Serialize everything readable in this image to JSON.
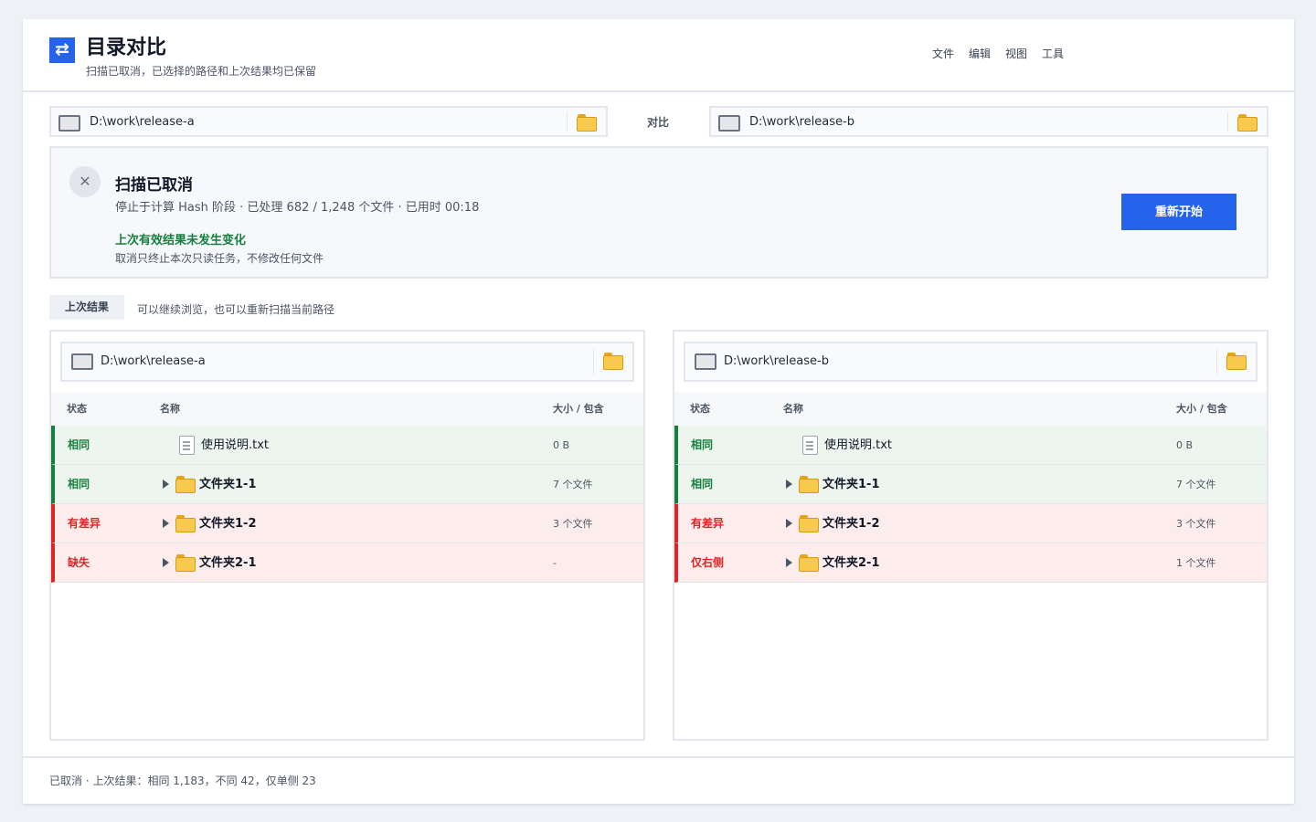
{
  "app": {
    "title": "目录对比",
    "subtitle": "扫描已取消，已选择的路径和上次结果均已保留",
    "logo_icon": "swap-arrows-icon"
  },
  "menu": [
    "文件",
    "编辑",
    "视图",
    "工具"
  ],
  "paths": {
    "left": "D:\\work\\release-a",
    "right": "D:\\work\\release-b",
    "compare_label": "对比"
  },
  "cancel": {
    "icon": "close-icon",
    "title": "扫描已取消",
    "detail": "停止于计算 Hash 阶段 · 已处理 682 / 1,248 个文件 · 已用时 00:18",
    "note_title": "上次有效结果未发生变化",
    "note_text": "取消只终止本次只读任务，不修改任何文件",
    "restart_label": "重新开始"
  },
  "last_results": {
    "tag": "上次结果",
    "hint": "可以继续浏览，也可以重新扫描当前路径"
  },
  "columns": {
    "status": "状态",
    "name": "名称",
    "size": "大小 / 包含"
  },
  "left_pane": {
    "path": "D:\\work\\release-a",
    "rows": [
      {
        "status": "相同",
        "state": "same",
        "type": "file",
        "name": "使用说明.txt",
        "size": "0 B"
      },
      {
        "status": "相同",
        "state": "same",
        "type": "folder",
        "name": "文件夹1-1",
        "size": "7 个文件"
      },
      {
        "status": "有差异",
        "state": "diff",
        "type": "folder",
        "name": "文件夹1-2",
        "size": "3 个文件"
      },
      {
        "status": "缺失",
        "state": "diff",
        "type": "folder",
        "name": "文件夹2-1",
        "size": "-"
      }
    ]
  },
  "right_pane": {
    "path": "D:\\work\\release-b",
    "rows": [
      {
        "status": "相同",
        "state": "same",
        "type": "file",
        "name": "使用说明.txt",
        "size": "0 B"
      },
      {
        "status": "相同",
        "state": "same",
        "type": "folder",
        "name": "文件夹1-1",
        "size": "7 个文件"
      },
      {
        "status": "有差异",
        "state": "diff",
        "type": "folder",
        "name": "文件夹1-2",
        "size": "3 个文件"
      },
      {
        "status": "仅右侧",
        "state": "diff",
        "type": "folder",
        "name": "文件夹2-1",
        "size": "1 个文件"
      }
    ]
  },
  "footer": {
    "text": "已取消 · 上次结果：相同 1,183，不同 42，仅单侧 23"
  },
  "colors": {
    "accent": "#2563eb",
    "same": "#15803d",
    "diff": "#dc2626",
    "folder": "#f7c94c"
  }
}
